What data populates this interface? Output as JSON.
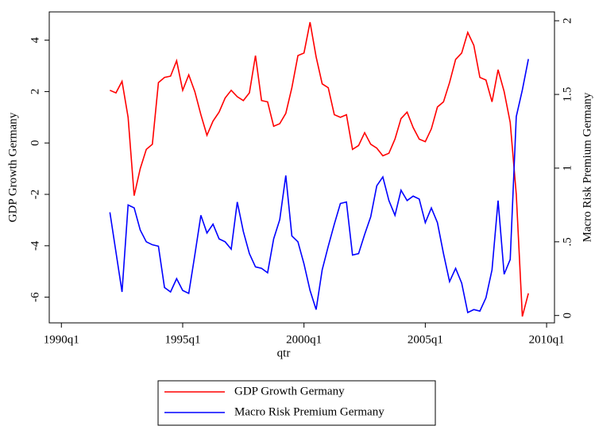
{
  "chart_data": {
    "type": "line",
    "x_label": "qtr",
    "y_label": "GDP Growth Germany",
    "y2_label": "Macro Risk Premium Germany",
    "x": [
      128,
      129,
      130,
      131,
      132,
      133,
      134,
      135,
      136,
      137,
      138,
      139,
      140,
      141,
      142,
      143,
      144,
      145,
      146,
      147,
      148,
      149,
      150,
      151,
      152,
      153,
      154,
      155,
      156,
      157,
      158,
      159,
      160,
      161,
      162,
      163,
      164,
      165,
      166,
      167,
      168,
      169,
      170,
      171,
      172,
      173,
      174,
      175,
      176,
      177,
      178,
      179,
      180,
      181,
      182,
      183,
      184,
      185,
      186,
      187,
      188,
      189,
      190,
      191,
      192,
      193,
      194,
      195,
      196,
      197
    ],
    "series": [
      {
        "name": "GDP Growth Germany",
        "color": "#ff0000",
        "axis": "y",
        "values": [
          2.05,
          1.95,
          2.4,
          1.0,
          -2.05,
          -1.0,
          -0.25,
          -0.05,
          2.35,
          2.55,
          2.6,
          3.2,
          2.05,
          2.65,
          2.0,
          1.1,
          0.3,
          0.85,
          1.2,
          1.75,
          2.05,
          1.8,
          1.65,
          1.95,
          3.4,
          1.65,
          1.6,
          0.65,
          0.75,
          1.15,
          2.15,
          3.4,
          3.5,
          4.7,
          3.35,
          2.3,
          2.15,
          1.1,
          1.0,
          1.1,
          -0.25,
          -0.1,
          0.4,
          -0.05,
          -0.2,
          -0.5,
          -0.4,
          0.15,
          0.95,
          1.2,
          0.6,
          0.15,
          0.05,
          0.55,
          1.4,
          1.6,
          2.35,
          3.25,
          3.5,
          4.3,
          3.8,
          2.55,
          2.45,
          1.6,
          2.85,
          2.0,
          0.8,
          -2.0,
          -6.75,
          -5.85
        ]
      },
      {
        "name": "Macro Risk Premium Germany",
        "color": "#0000ff",
        "axis": "y2",
        "values": [
          0.7,
          0.43,
          0.16,
          0.75,
          0.73,
          0.58,
          0.5,
          0.48,
          0.47,
          0.19,
          0.16,
          0.25,
          0.17,
          0.15,
          0.41,
          0.68,
          0.56,
          0.62,
          0.52,
          0.5,
          0.45,
          0.77,
          0.57,
          0.42,
          0.33,
          0.32,
          0.29,
          0.52,
          0.65,
          0.95,
          0.54,
          0.5,
          0.35,
          0.17,
          0.04,
          0.31,
          0.47,
          0.62,
          0.76,
          0.77,
          0.41,
          0.42,
          0.55,
          0.67,
          0.88,
          0.94,
          0.78,
          0.68,
          0.85,
          0.78,
          0.81,
          0.79,
          0.63,
          0.73,
          0.63,
          0.42,
          0.23,
          0.32,
          0.22,
          0.02,
          0.04,
          0.03,
          0.12,
          0.31,
          0.78,
          0.28,
          0.38,
          1.35,
          1.53,
          1.74
        ]
      }
    ],
    "xlim": [
      118,
      201.3
    ],
    "xticks": [
      {
        "value": 120,
        "label": "1990q1"
      },
      {
        "value": 140,
        "label": "1995q1"
      },
      {
        "value": 160,
        "label": "2000q1"
      },
      {
        "value": 180,
        "label": "2005q1"
      },
      {
        "value": 200,
        "label": "2010q1"
      }
    ],
    "ylim": [
      -7,
      5.1
    ],
    "yticks": [
      -6,
      -4,
      -2,
      0,
      2,
      4
    ],
    "y2lim": [
      -0.05,
      2.06
    ],
    "y2ticks": [
      0,
      {
        "value": 0.5,
        "label": ".5"
      },
      1,
      1.5,
      2
    ],
    "grid": false
  }
}
